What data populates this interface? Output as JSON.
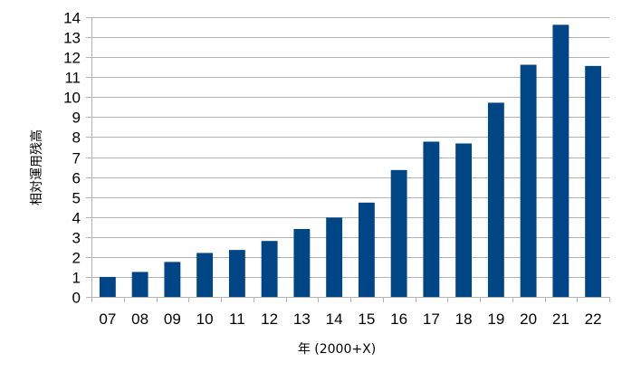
{
  "chart_data": {
    "type": "bar",
    "title": "",
    "xlabel": "年 (2000+X)",
    "ylabel": "相対運用残高",
    "categories": [
      "07",
      "08",
      "09",
      "10",
      "11",
      "12",
      "13",
      "14",
      "15",
      "16",
      "17",
      "18",
      "19",
      "20",
      "21",
      "22"
    ],
    "values": [
      1.0,
      1.25,
      1.75,
      2.2,
      2.35,
      2.8,
      3.4,
      3.97,
      4.72,
      6.35,
      7.77,
      7.68,
      9.72,
      11.62,
      13.62,
      11.56
    ],
    "ylim": [
      0,
      14
    ],
    "yticks": [
      0,
      1,
      2,
      3,
      4,
      5,
      6,
      7,
      8,
      9,
      10,
      11,
      12,
      13,
      14
    ],
    "grid": true,
    "legend": "none",
    "bar_color": "#004586",
    "grid_color": "#b3b3b3"
  }
}
